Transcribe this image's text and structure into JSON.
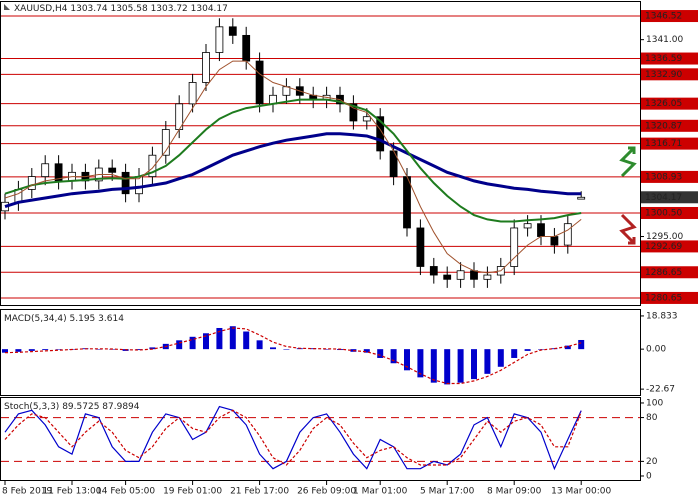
{
  "chart_data": [
    {
      "type": "candlestick",
      "symbol": "XAUUSD,H4",
      "categories": [
        "8 Feb 2019",
        null,
        null,
        null,
        null,
        "11 Feb 13:00",
        null,
        null,
        null,
        "14 Feb 05:00",
        null,
        null,
        null,
        null,
        "19 Feb 01:00",
        null,
        null,
        null,
        null,
        "21 Feb 17:00",
        null,
        null,
        null,
        null,
        "26 Feb 09:00",
        null,
        null,
        null,
        "1 Mar 01:00",
        null,
        null,
        null,
        null,
        "5 Mar 17:00",
        null,
        null,
        null,
        null,
        "8 Mar 09:00",
        null,
        null,
        null,
        null,
        "13 Mar 00:00"
      ],
      "open": [
        1301,
        1303,
        1306,
        1309,
        1312,
        1308,
        1310,
        1308,
        1311,
        1310,
        1305,
        1309,
        1314,
        1320,
        1326,
        1331,
        1338,
        1344,
        1342,
        1336,
        1326,
        1328,
        1330,
        1328,
        1327,
        1328,
        1326,
        1322,
        1323,
        1315,
        1309,
        1297,
        1288,
        1286,
        1285,
        1287,
        1285,
        1286,
        1288,
        1297,
        1298,
        1295,
        1293,
        1303.74
      ],
      "high": [
        1305,
        1308,
        1311,
        1314,
        1314,
        1312,
        1312,
        1313,
        1313,
        1312,
        1311,
        1316,
        1322,
        1328,
        1333,
        1340,
        1346,
        1346,
        1344,
        1338,
        1330,
        1332,
        1332,
        1330,
        1330,
        1330,
        1328,
        1325,
        1325,
        1317,
        1311,
        1299,
        1290,
        1288,
        1289,
        1289,
        1288,
        1290,
        1299,
        1300,
        1300,
        1297,
        1300,
        1305.58
      ],
      "low": [
        1299,
        1301,
        1304,
        1307,
        1306,
        1306,
        1306,
        1306,
        1308,
        1303,
        1303,
        1307,
        1312,
        1318,
        1324,
        1329,
        1336,
        1340,
        1334,
        1324,
        1324,
        1326,
        1326,
        1325,
        1325,
        1324,
        1320,
        1320,
        1313,
        1307,
        1295,
        1286,
        1284,
        1283,
        1283,
        1283,
        1283,
        1284,
        1286,
        1295,
        1293,
        1291,
        1291,
        1303.72
      ],
      "close": [
        1303,
        1306,
        1309,
        1312,
        1308,
        1310,
        1308,
        1311,
        1310,
        1305,
        1309,
        1314,
        1320,
        1326,
        1331,
        1338,
        1344,
        1342,
        1336,
        1326,
        1328,
        1330,
        1328,
        1327,
        1328,
        1326,
        1322,
        1323,
        1315,
        1309,
        1297,
        1288,
        1286,
        1285,
        1287,
        1285,
        1286,
        1288,
        1297,
        1298,
        1295,
        1293,
        1298,
        1304.17
      ],
      "series": [
        {
          "color": "#00008b",
          "width": 3,
          "values": [
            1302,
            1303,
            1303.5,
            1304,
            1304.5,
            1305,
            1305.3,
            1305.6,
            1306,
            1306.2,
            1306.5,
            1307,
            1307.5,
            1308.5,
            1309.5,
            1311,
            1312.5,
            1314,
            1315,
            1316,
            1316.8,
            1317.5,
            1318,
            1318.5,
            1319,
            1319,
            1318.8,
            1318.5,
            1317.5,
            1316,
            1314.5,
            1313,
            1311.5,
            1310,
            1309,
            1308,
            1307.3,
            1306.8,
            1306.3,
            1306,
            1305.6,
            1305.3,
            1305,
            1305
          ]
        },
        {
          "color": "#1e7b1e",
          "width": 2,
          "values": [
            1305,
            1306,
            1307,
            1307.5,
            1307.8,
            1308,
            1308.2,
            1308.5,
            1308.6,
            1308.5,
            1309,
            1310,
            1311.5,
            1314,
            1317,
            1320,
            1322.5,
            1324,
            1325,
            1325.5,
            1326,
            1326.5,
            1327,
            1327,
            1327,
            1326.5,
            1325.5,
            1324.5,
            1322,
            1319,
            1315,
            1311,
            1307.5,
            1304.5,
            1302,
            1300,
            1299,
            1298.5,
            1298.5,
            1298.8,
            1299,
            1299.3,
            1300,
            1300.5
          ]
        },
        {
          "color": "#a0522d",
          "width": 1,
          "values": [
            1304,
            1305,
            1307,
            1308,
            1308.5,
            1309,
            1309,
            1309.5,
            1309.5,
            1308.5,
            1308.5,
            1311,
            1315,
            1320,
            1325,
            1330,
            1334,
            1336,
            1336,
            1333,
            1331,
            1330,
            1329,
            1328,
            1327.5,
            1327,
            1325,
            1324,
            1320,
            1315,
            1309,
            1302,
            1296,
            1291,
            1288.5,
            1287,
            1286.5,
            1287,
            1290,
            1293,
            1295,
            1295,
            1296.5,
            1299
          ]
        }
      ],
      "levels": [
        1346.52,
        1336.59,
        {
          "value": 1332.9,
          "label": "1332.90"
        },
        1326.05,
        1320.87,
        1316.71,
        1308.93,
        {
          "value": 1300.5,
          "label": "1300.50"
        },
        1292.69,
        1286.65,
        1280.65
      ],
      "level_color": "#cc0000",
      "ylim": [
        1279,
        1349.8
      ],
      "yticks": [
        {
          "value": 1341,
          "label": "1341.00"
        },
        {
          "value": 1295,
          "label": "1295.00"
        }
      ]
    },
    {
      "type": "bar",
      "title": "MACD(5,34,4)",
      "color": "#0000cc",
      "values": [
        -2,
        -1.5,
        -1,
        -0.5,
        0,
        0,
        0.5,
        0,
        0,
        -1,
        -0.5,
        1,
        3,
        5,
        7,
        9,
        12,
        13,
        10,
        5,
        1,
        0,
        0.5,
        0.5,
        0,
        -0.5,
        -1.5,
        -2,
        -5,
        -8,
        -12,
        -16,
        -19,
        -20,
        -19,
        -17,
        -14,
        -10,
        -5,
        -1,
        0,
        0.5,
        2,
        5.195
      ],
      "series": [
        {
          "color": "#cc0000",
          "dashed": true,
          "values": [
            -2,
            -1.8,
            -1.4,
            -1,
            -0.6,
            -0.2,
            0.2,
            0.2,
            0.1,
            -0.3,
            -0.5,
            0,
            1.5,
            3.5,
            5.5,
            7.5,
            10,
            12,
            11.5,
            8,
            4,
            1.5,
            0.5,
            0.3,
            0.2,
            0,
            -0.8,
            -1.5,
            -3.5,
            -6.5,
            -10,
            -14,
            -17.5,
            -19.5,
            -19.5,
            -18,
            -15.5,
            -12,
            -7.5,
            -3,
            -0.5,
            0.3,
            1.5,
            3.614
          ]
        }
      ],
      "ylim": [
        -26,
        22.2
      ],
      "yticks": [
        18.833,
        {
          "value": 0,
          "label": "0.00"
        },
        -22.67
      ]
    },
    {
      "type": "line",
      "title": "Stoch(5,3,3)",
      "series": [
        {
          "color": "#0000cc",
          "values": [
            60,
            85,
            90,
            70,
            40,
            30,
            85,
            80,
            40,
            20,
            20,
            60,
            85,
            80,
            50,
            60,
            95,
            90,
            70,
            30,
            10,
            20,
            60,
            80,
            85,
            60,
            30,
            10,
            50,
            40,
            10,
            10,
            20,
            15,
            30,
            70,
            80,
            40,
            85,
            80,
            60,
            10,
            50,
            89.5725
          ]
        },
        {
          "color": "#cc0000",
          "dashed": true,
          "values": [
            50,
            70,
            85,
            80,
            60,
            40,
            60,
            75,
            60,
            35,
            25,
            40,
            65,
            80,
            65,
            60,
            80,
            90,
            80,
            55,
            25,
            15,
            35,
            65,
            80,
            70,
            45,
            25,
            35,
            40,
            25,
            15,
            15,
            15,
            25,
            50,
            75,
            60,
            75,
            80,
            70,
            40,
            40,
            87.9894
          ]
        }
      ],
      "levels": [
        80,
        20
      ],
      "level_color": "#cc0000",
      "ylim": [
        -5.5,
        106.8
      ],
      "yticks": [
        100,
        80,
        20,
        0
      ]
    }
  ]
}
